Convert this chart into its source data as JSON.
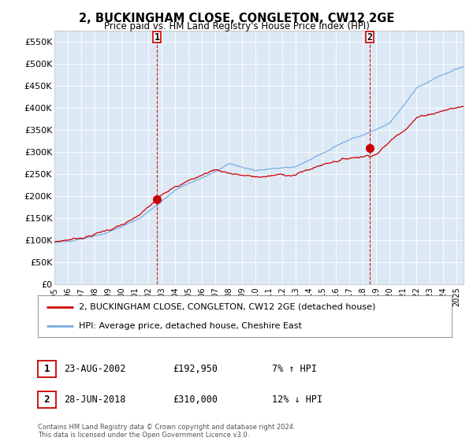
{
  "title": "2, BUCKINGHAM CLOSE, CONGLETON, CW12 2GE",
  "subtitle": "Price paid vs. HM Land Registry's House Price Index (HPI)",
  "ylabel_ticks": [
    "£0",
    "£50K",
    "£100K",
    "£150K",
    "£200K",
    "£250K",
    "£300K",
    "£350K",
    "£400K",
    "£450K",
    "£500K",
    "£550K"
  ],
  "ytick_values": [
    0,
    50000,
    100000,
    150000,
    200000,
    250000,
    300000,
    350000,
    400000,
    450000,
    500000,
    550000
  ],
  "ylim": [
    0,
    575000
  ],
  "xlim_start": 1995.0,
  "xlim_end": 2025.5,
  "hpi_color": "#7aade0",
  "price_color": "#cc0000",
  "marker1_date": 2002.65,
  "marker1_price": 192950,
  "marker2_date": 2018.5,
  "marker2_price": 310000,
  "legend_line1": "2, BUCKINGHAM CLOSE, CONGLETON, CW12 2GE (detached house)",
  "legend_line2": "HPI: Average price, detached house, Cheshire East",
  "sale1_date_str": "23-AUG-2002",
  "sale1_price_str": "£192,950",
  "sale1_hpi_str": "7% ↑ HPI",
  "sale2_date_str": "28-JUN-2018",
  "sale2_price_str": "£310,000",
  "sale2_hpi_str": "12% ↓ HPI",
  "footnote": "Contains HM Land Registry data © Crown copyright and database right 2024.\nThis data is licensed under the Open Government Licence v3.0.",
  "background_color": "#ffffff",
  "chart_bg_color": "#dce9f5",
  "grid_color": "#ffffff"
}
